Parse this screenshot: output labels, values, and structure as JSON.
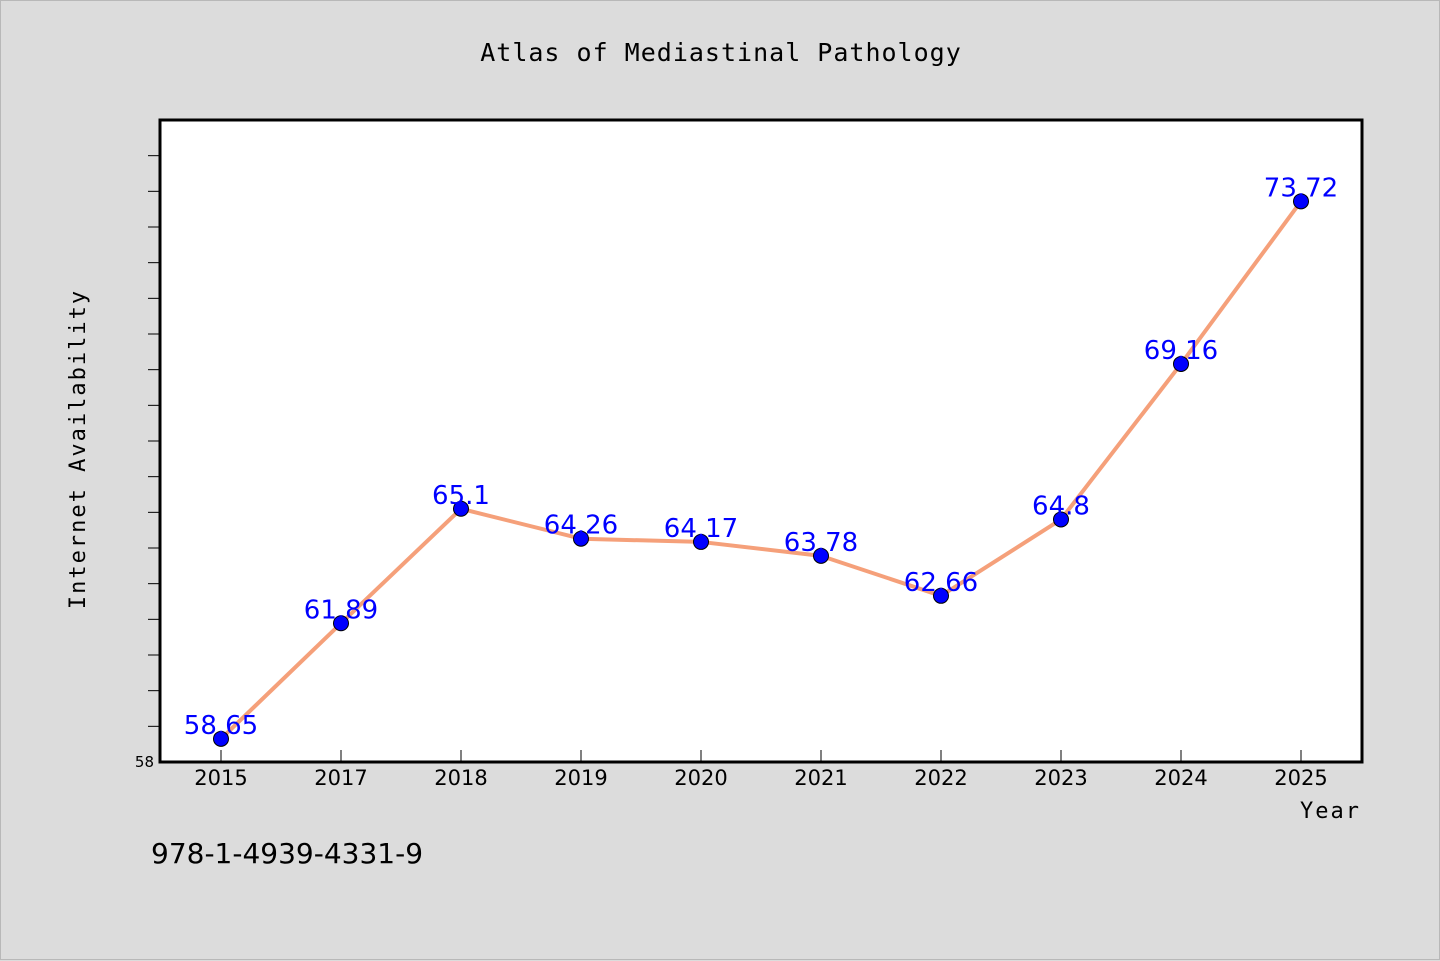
{
  "chart_data": {
    "type": "line",
    "title": "Atlas of Mediastinal Pathology",
    "xlabel": "Year",
    "ylabel": "Internet Availability",
    "categories": [
      "2015",
      "2017",
      "2018",
      "2019",
      "2020",
      "2021",
      "2022",
      "2023",
      "2024",
      "2025"
    ],
    "series": [
      {
        "values": [
          58.65,
          61.89,
          65.1,
          64.26,
          64.17,
          63.78,
          62.66,
          64.8,
          69.16,
          73.72
        ],
        "labels": [
          "58.65",
          "61.89",
          "65.1",
          "64.26",
          "64.17",
          "63.78",
          "62.66",
          "64.8",
          "69.16",
          "73.72"
        ],
        "line_color": "#f5a07a",
        "marker_color": "#0000ff"
      }
    ],
    "ylim": [
      58,
      76
    ],
    "y_tick_labels": [
      "58"
    ],
    "grid": false,
    "legend": false,
    "background": "#dcdcdc",
    "plot_background": "#ffffff"
  },
  "footer": {
    "isbn": "978-1-4939-4331-9"
  }
}
